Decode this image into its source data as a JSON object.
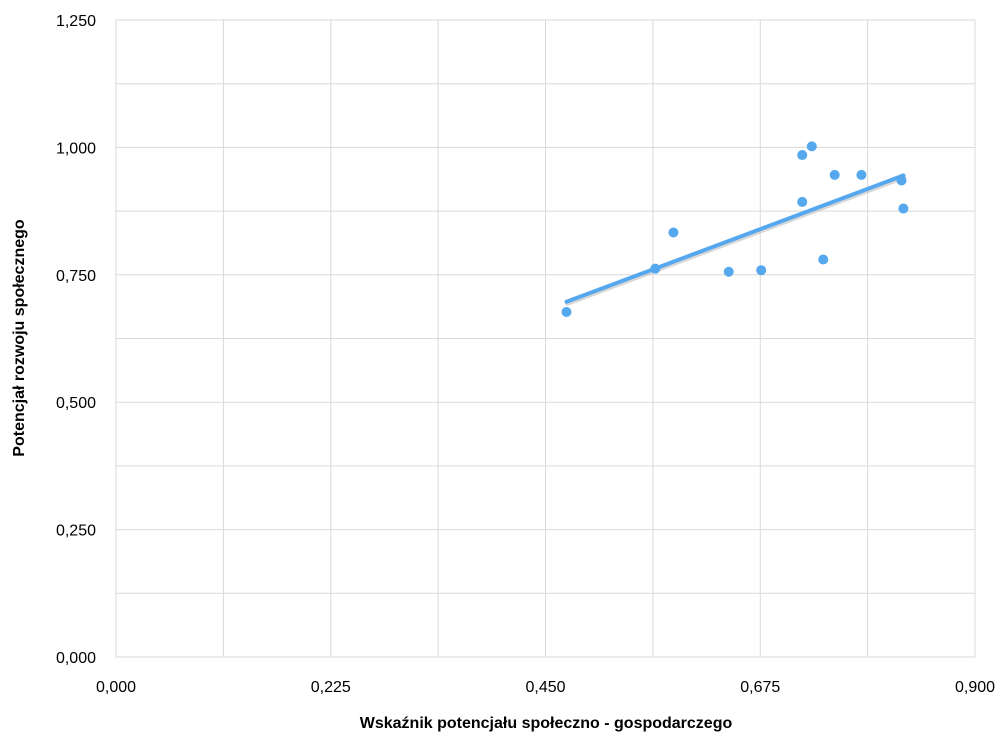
{
  "chart_data": {
    "type": "scatter",
    "title": "",
    "xlabel": "Wskaźnik potencjału społeczno - gospodarczego",
    "ylabel": "Potencjał rozwoju społecznego",
    "xlim": [
      0,
      0.9
    ],
    "ylim": [
      0,
      1.25
    ],
    "x_ticks": [
      0,
      0.225,
      0.45,
      0.675,
      0.9
    ],
    "x_tick_labels": [
      "0,000",
      "0,225",
      "0,450",
      "0,675",
      "0,900"
    ],
    "x_grid": [
      0,
      0.1125,
      0.225,
      0.3375,
      0.45,
      0.5625,
      0.675,
      0.7875,
      0.9
    ],
    "y_ticks": [
      0,
      0.25,
      0.5,
      0.75,
      1.0,
      1.25
    ],
    "y_tick_labels": [
      "0,000",
      "0,250",
      "0,500",
      "0,750",
      "1,000",
      "1,250"
    ],
    "y_grid": [
      0,
      0.125,
      0.25,
      0.375,
      0.5,
      0.625,
      0.75,
      0.875,
      1.0,
      1.125,
      1.25
    ],
    "grid": true,
    "legend": "none",
    "series": [
      {
        "x": [
          0.472,
          0.565,
          0.584,
          0.642,
          0.676,
          0.719,
          0.719,
          0.729,
          0.741,
          0.753,
          0.781,
          0.823,
          0.825
        ],
        "y": [
          0.677,
          0.762,
          0.833,
          0.756,
          0.759,
          0.985,
          0.893,
          1.002,
          0.78,
          0.946,
          0.946,
          0.935,
          0.88
        ],
        "color": "#55A8EE"
      }
    ],
    "trendline": {
      "type": "linear",
      "x": [
        0.472,
        0.825
      ],
      "y": [
        0.697,
        0.945
      ],
      "color": "#55A8EE"
    }
  }
}
